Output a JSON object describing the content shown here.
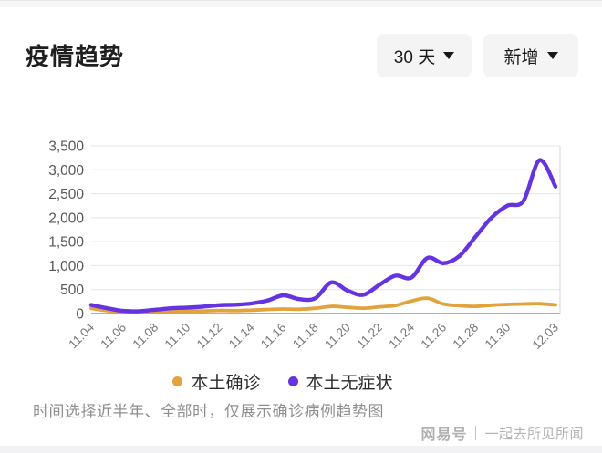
{
  "header": {
    "title": "疫情趋势",
    "range_dropdown": "30 天",
    "type_dropdown": "新增"
  },
  "chart_data": {
    "type": "line",
    "title": "疫情趋势",
    "xlabel": "",
    "ylabel": "",
    "ylim": [
      0,
      3500
    ],
    "grid": true,
    "legend_position": "bottom",
    "x": [
      "11.04",
      "11.05",
      "11.06",
      "11.07",
      "11.08",
      "11.09",
      "11.10",
      "11.11",
      "11.12",
      "11.13",
      "11.14",
      "11.15",
      "11.16",
      "11.17",
      "11.18",
      "11.19",
      "11.20",
      "11.21",
      "11.22",
      "11.23",
      "11.24",
      "11.25",
      "11.26",
      "11.27",
      "11.28",
      "11.29",
      "11.30",
      "12.01",
      "12.02",
      "12.03"
    ],
    "x_tick_indices": [
      0,
      2,
      4,
      6,
      8,
      10,
      12,
      14,
      16,
      18,
      20,
      22,
      24,
      26,
      29
    ],
    "y_ticks": [
      {
        "value": 0,
        "label": "0"
      },
      {
        "value": 500,
        "label": "500"
      },
      {
        "value": 1000,
        "label": "1,000"
      },
      {
        "value": 1500,
        "label": "1,500"
      },
      {
        "value": 2000,
        "label": "2,000"
      },
      {
        "value": 2500,
        "label": "2,500"
      },
      {
        "value": 3000,
        "label": "3,000"
      },
      {
        "value": 3500,
        "label": "3,500"
      }
    ],
    "series": [
      {
        "name": "本土确诊",
        "color": "#E2A33C",
        "values": [
          110,
          60,
          35,
          30,
          45,
          50,
          55,
          55,
          65,
          60,
          70,
          85,
          95,
          90,
          110,
          150,
          130,
          110,
          140,
          170,
          260,
          320,
          200,
          165,
          150,
          175,
          190,
          200,
          205,
          180
        ]
      },
      {
        "name": "本土无症状",
        "color": "#6633E0",
        "values": [
          180,
          110,
          55,
          50,
          80,
          110,
          125,
          145,
          175,
          185,
          210,
          270,
          380,
          300,
          320,
          650,
          480,
          390,
          600,
          790,
          750,
          1160,
          1050,
          1200,
          1600,
          2000,
          2250,
          2350,
          3200,
          2650
        ]
      }
    ]
  },
  "footer": {
    "note": "时间选择近半年、全部时，仅展示确诊病例趋势图"
  },
  "watermark": {
    "brand": "网易号",
    "account": "一起去所见所闻"
  }
}
